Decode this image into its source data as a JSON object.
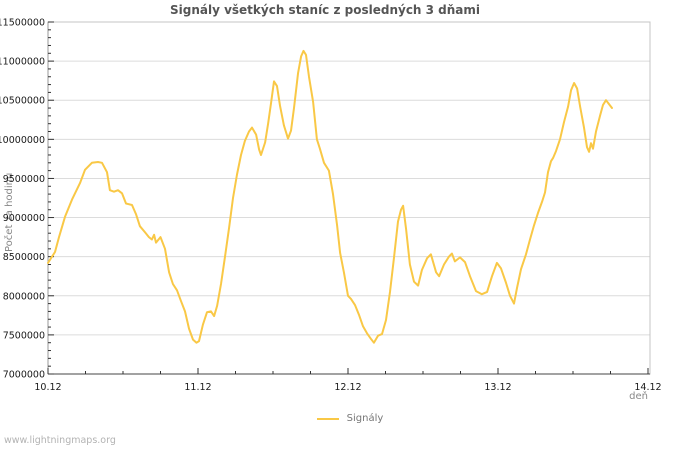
{
  "footer": {
    "watermark": "www.lightningmaps.org"
  },
  "chart_data": {
    "type": "line",
    "title": "Signály všetkých staníc z posledných 3 dňami",
    "xlabel": "deň",
    "ylabel": "Počet za hodinu",
    "legend": [
      "Signály"
    ],
    "legend_position": "bottom",
    "grid": "horizontal-only",
    "colors": {
      "line": "#f9c846",
      "grid": "#dcdcdc",
      "border": "#c4c4c4",
      "axis": "#444444",
      "axis_left": "#999999",
      "tick": "#333333",
      "tick_label": "#1a1a1a"
    },
    "y_range": [
      7000000,
      11500000
    ],
    "y_major_step": 500000,
    "y_minor_step": 100000,
    "y_tick_labels": [
      "7000000",
      "7500000",
      "8000000",
      "8500000",
      "9000000",
      "9500000",
      "10000000",
      "10500000",
      "11000000",
      "11500000"
    ],
    "x_range_days": [
      0,
      4.0133
    ],
    "x_minor_step": 0.25,
    "x_ticks": [
      {
        "day": 0,
        "label": "10.12"
      },
      {
        "day": 1,
        "label": "11.12"
      },
      {
        "day": 2,
        "label": "12.12"
      },
      {
        "day": 3,
        "label": "13.12"
      },
      {
        "day": 4,
        "label": "14.12"
      }
    ],
    "series": [
      {
        "name": "Signály",
        "points": [
          [
            0.0,
            8420000
          ],
          [
            0.02,
            8480000
          ],
          [
            0.047,
            8560000
          ],
          [
            0.073,
            8750000
          ],
          [
            0.113,
            9010000
          ],
          [
            0.16,
            9230000
          ],
          [
            0.213,
            9440000
          ],
          [
            0.247,
            9610000
          ],
          [
            0.293,
            9700000
          ],
          [
            0.333,
            9710000
          ],
          [
            0.36,
            9700000
          ],
          [
            0.393,
            9580000
          ],
          [
            0.413,
            9350000
          ],
          [
            0.44,
            9330000
          ],
          [
            0.467,
            9350000
          ],
          [
            0.493,
            9310000
          ],
          [
            0.52,
            9180000
          ],
          [
            0.56,
            9160000
          ],
          [
            0.587,
            9040000
          ],
          [
            0.613,
            8890000
          ],
          [
            0.647,
            8810000
          ],
          [
            0.673,
            8750000
          ],
          [
            0.693,
            8720000
          ],
          [
            0.707,
            8780000
          ],
          [
            0.72,
            8680000
          ],
          [
            0.75,
            8750000
          ],
          [
            0.78,
            8600000
          ],
          [
            0.807,
            8300000
          ],
          [
            0.833,
            8150000
          ],
          [
            0.86,
            8070000
          ],
          [
            0.887,
            7930000
          ],
          [
            0.913,
            7800000
          ],
          [
            0.94,
            7580000
          ],
          [
            0.967,
            7440000
          ],
          [
            0.99,
            7400000
          ],
          [
            1.007,
            7420000
          ],
          [
            1.033,
            7630000
          ],
          [
            1.06,
            7790000
          ],
          [
            1.087,
            7800000
          ],
          [
            1.107,
            7740000
          ],
          [
            1.127,
            7870000
          ],
          [
            1.153,
            8150000
          ],
          [
            1.18,
            8500000
          ],
          [
            1.207,
            8870000
          ],
          [
            1.233,
            9250000
          ],
          [
            1.26,
            9550000
          ],
          [
            1.287,
            9800000
          ],
          [
            1.313,
            9980000
          ],
          [
            1.34,
            10100000
          ],
          [
            1.36,
            10150000
          ],
          [
            1.387,
            10060000
          ],
          [
            1.407,
            9870000
          ],
          [
            1.42,
            9800000
          ],
          [
            1.447,
            9960000
          ],
          [
            1.467,
            10200000
          ],
          [
            1.487,
            10470000
          ],
          [
            1.507,
            10740000
          ],
          [
            1.527,
            10680000
          ],
          [
            1.547,
            10430000
          ],
          [
            1.573,
            10180000
          ],
          [
            1.6,
            10010000
          ],
          [
            1.62,
            10110000
          ],
          [
            1.64,
            10400000
          ],
          [
            1.667,
            10850000
          ],
          [
            1.687,
            11060000
          ],
          [
            1.703,
            11130000
          ],
          [
            1.72,
            11080000
          ],
          [
            1.74,
            10800000
          ],
          [
            1.767,
            10480000
          ],
          [
            1.793,
            10000000
          ],
          [
            1.813,
            9880000
          ],
          [
            1.84,
            9700000
          ],
          [
            1.873,
            9600000
          ],
          [
            1.9,
            9300000
          ],
          [
            1.927,
            8900000
          ],
          [
            1.947,
            8550000
          ],
          [
            1.973,
            8300000
          ],
          [
            2.0,
            8000000
          ],
          [
            2.02,
            7960000
          ],
          [
            2.047,
            7880000
          ],
          [
            2.073,
            7760000
          ],
          [
            2.1,
            7610000
          ],
          [
            2.127,
            7520000
          ],
          [
            2.153,
            7450000
          ],
          [
            2.173,
            7400000
          ],
          [
            2.2,
            7490000
          ],
          [
            2.227,
            7510000
          ],
          [
            2.253,
            7690000
          ],
          [
            2.28,
            8050000
          ],
          [
            2.307,
            8500000
          ],
          [
            2.333,
            8950000
          ],
          [
            2.353,
            9100000
          ],
          [
            2.367,
            9150000
          ],
          [
            2.387,
            8850000
          ],
          [
            2.413,
            8400000
          ],
          [
            2.44,
            8180000
          ],
          [
            2.467,
            8130000
          ],
          [
            2.493,
            8330000
          ],
          [
            2.527,
            8480000
          ],
          [
            2.553,
            8530000
          ],
          [
            2.587,
            8300000
          ],
          [
            2.607,
            8250000
          ],
          [
            2.64,
            8400000
          ],
          [
            2.673,
            8500000
          ],
          [
            2.693,
            8540000
          ],
          [
            2.713,
            8440000
          ],
          [
            2.747,
            8490000
          ],
          [
            2.78,
            8430000
          ],
          [
            2.813,
            8250000
          ],
          [
            2.853,
            8060000
          ],
          [
            2.893,
            8020000
          ],
          [
            2.927,
            8050000
          ],
          [
            2.96,
            8250000
          ],
          [
            2.993,
            8420000
          ],
          [
            3.02,
            8350000
          ],
          [
            3.053,
            8170000
          ],
          [
            3.08,
            8000000
          ],
          [
            3.107,
            7900000
          ],
          [
            3.127,
            8100000
          ],
          [
            3.153,
            8340000
          ],
          [
            3.187,
            8530000
          ],
          [
            3.213,
            8720000
          ],
          [
            3.24,
            8900000
          ],
          [
            3.267,
            9060000
          ],
          [
            3.293,
            9200000
          ],
          [
            3.313,
            9320000
          ],
          [
            3.333,
            9580000
          ],
          [
            3.353,
            9720000
          ],
          [
            3.367,
            9760000
          ],
          [
            3.387,
            9850000
          ],
          [
            3.413,
            10000000
          ],
          [
            3.44,
            10220000
          ],
          [
            3.467,
            10420000
          ],
          [
            3.487,
            10630000
          ],
          [
            3.507,
            10720000
          ],
          [
            3.527,
            10650000
          ],
          [
            3.547,
            10420000
          ],
          [
            3.573,
            10150000
          ],
          [
            3.593,
            9900000
          ],
          [
            3.607,
            9840000
          ],
          [
            3.62,
            9950000
          ],
          [
            3.633,
            9880000
          ],
          [
            3.653,
            10100000
          ],
          [
            3.68,
            10300000
          ],
          [
            3.7,
            10440000
          ],
          [
            3.72,
            10500000
          ],
          [
            3.74,
            10450000
          ],
          [
            3.76,
            10400000
          ]
        ]
      }
    ]
  }
}
